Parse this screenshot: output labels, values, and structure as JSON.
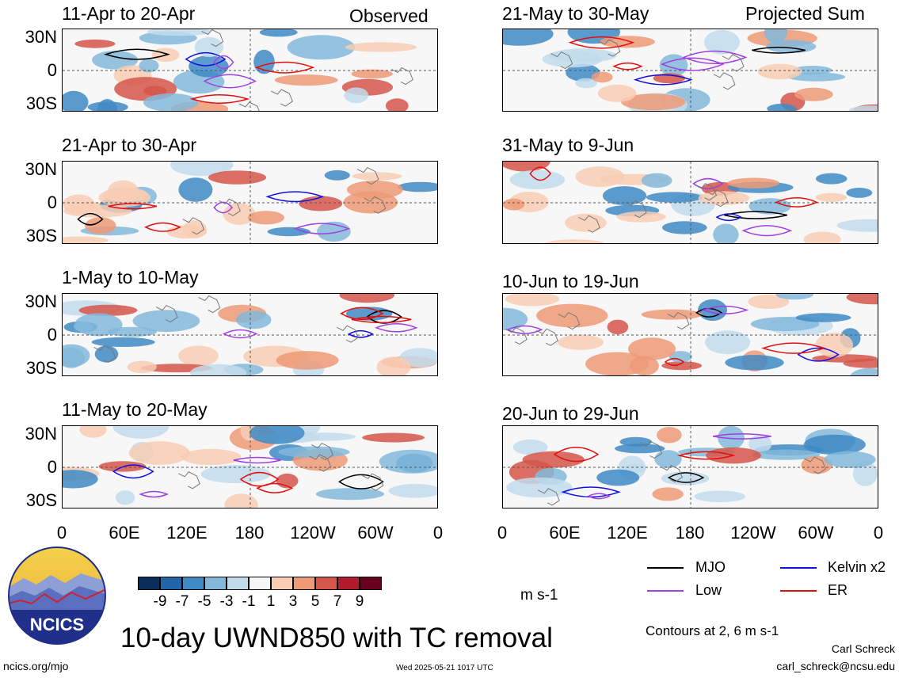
{
  "header": {
    "left_tag": "Observed",
    "right_tag": "Projected Sum"
  },
  "panels_left": [
    {
      "title": "11-Apr to 20-Apr"
    },
    {
      "title": "21-Apr to 30-Apr"
    },
    {
      "title": "1-May to 10-May"
    },
    {
      "title": "11-May to 20-May"
    }
  ],
  "panels_right": [
    {
      "title": "21-May to 30-May"
    },
    {
      "title": "31-May to 9-Jun"
    },
    {
      "title": "10-Jun to 19-Jun"
    },
    {
      "title": "20-Jun to 29-Jun"
    }
  ],
  "lat_labels": [
    "30N",
    "0",
    "30S"
  ],
  "lon_labels": [
    "0",
    "60E",
    "120E",
    "180",
    "120W",
    "60W",
    "0"
  ],
  "colorbar": {
    "labels": [
      "-9",
      "-7",
      "-5",
      "-3",
      "-1",
      "1",
      "3",
      "5",
      "7",
      "9"
    ],
    "colors": [
      "#0a2e5c",
      "#1f65a8",
      "#3f8ac4",
      "#83b8db",
      "#c3dcec",
      "#f7f7f7",
      "#f8cdb4",
      "#ee9a77",
      "#d5564a",
      "#b01c2e",
      "#67001f"
    ],
    "units": "m s-1"
  },
  "legend": {
    "items": [
      {
        "label": "MJO",
        "color": "#000000"
      },
      {
        "label": "Kelvin x2",
        "color": "#1010dd"
      },
      {
        "label": "Low",
        "color": "#a040e0"
      },
      {
        "label": "ER",
        "color": "#e01010"
      }
    ],
    "contours_note": "Contours at 2, 6 m s-1"
  },
  "footer": {
    "title": "10-day UWND850 with TC removal",
    "url": "ncics.org/mjo",
    "timestamp": "Wed 2025-05-21 1017 UTC",
    "author": "Carl Schreck",
    "email": "carl_schreck@ncsu.edu",
    "logo_text": "NCICS"
  }
}
